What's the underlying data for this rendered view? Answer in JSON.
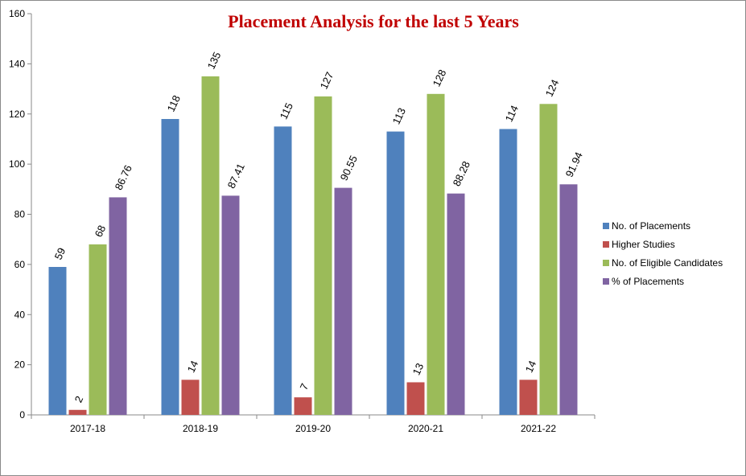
{
  "chart_data": {
    "type": "bar",
    "title": "Placement Analysis for the last 5 Years",
    "xlabel": "",
    "ylabel": "",
    "categories": [
      "2017-18",
      "2018-19",
      "2019-20",
      "2020-21",
      "2021-22"
    ],
    "series": [
      {
        "name": "No. of Placements",
        "color": "#4f81bd",
        "values": [
          59,
          118,
          115,
          113,
          114
        ],
        "labels": [
          "59",
          "118",
          "115",
          "113",
          "114"
        ]
      },
      {
        "name": "Higher Studies",
        "color": "#c0504d",
        "values": [
          2,
          14,
          7,
          13,
          14
        ],
        "labels": [
          "2",
          "14",
          "7",
          "13",
          "14"
        ]
      },
      {
        "name": "No. of Eligible Candidates",
        "color": "#9bbb59",
        "values": [
          68,
          135,
          127,
          128,
          124
        ],
        "labels": [
          "68",
          "135",
          "127",
          "128",
          "124"
        ]
      },
      {
        "name": "% of Placements",
        "color": "#8064a2",
        "values": [
          86.76,
          87.41,
          90.55,
          88.28,
          91.94
        ],
        "labels": [
          "86.76",
          "87.41",
          "90.55",
          "88.28",
          "91.94"
        ]
      }
    ],
    "ylim": [
      0,
      160
    ],
    "yticks": [
      "0",
      "20",
      "40",
      "60",
      "80",
      "100",
      "120",
      "140",
      "160"
    ],
    "grid": false,
    "legend_position": "right"
  }
}
